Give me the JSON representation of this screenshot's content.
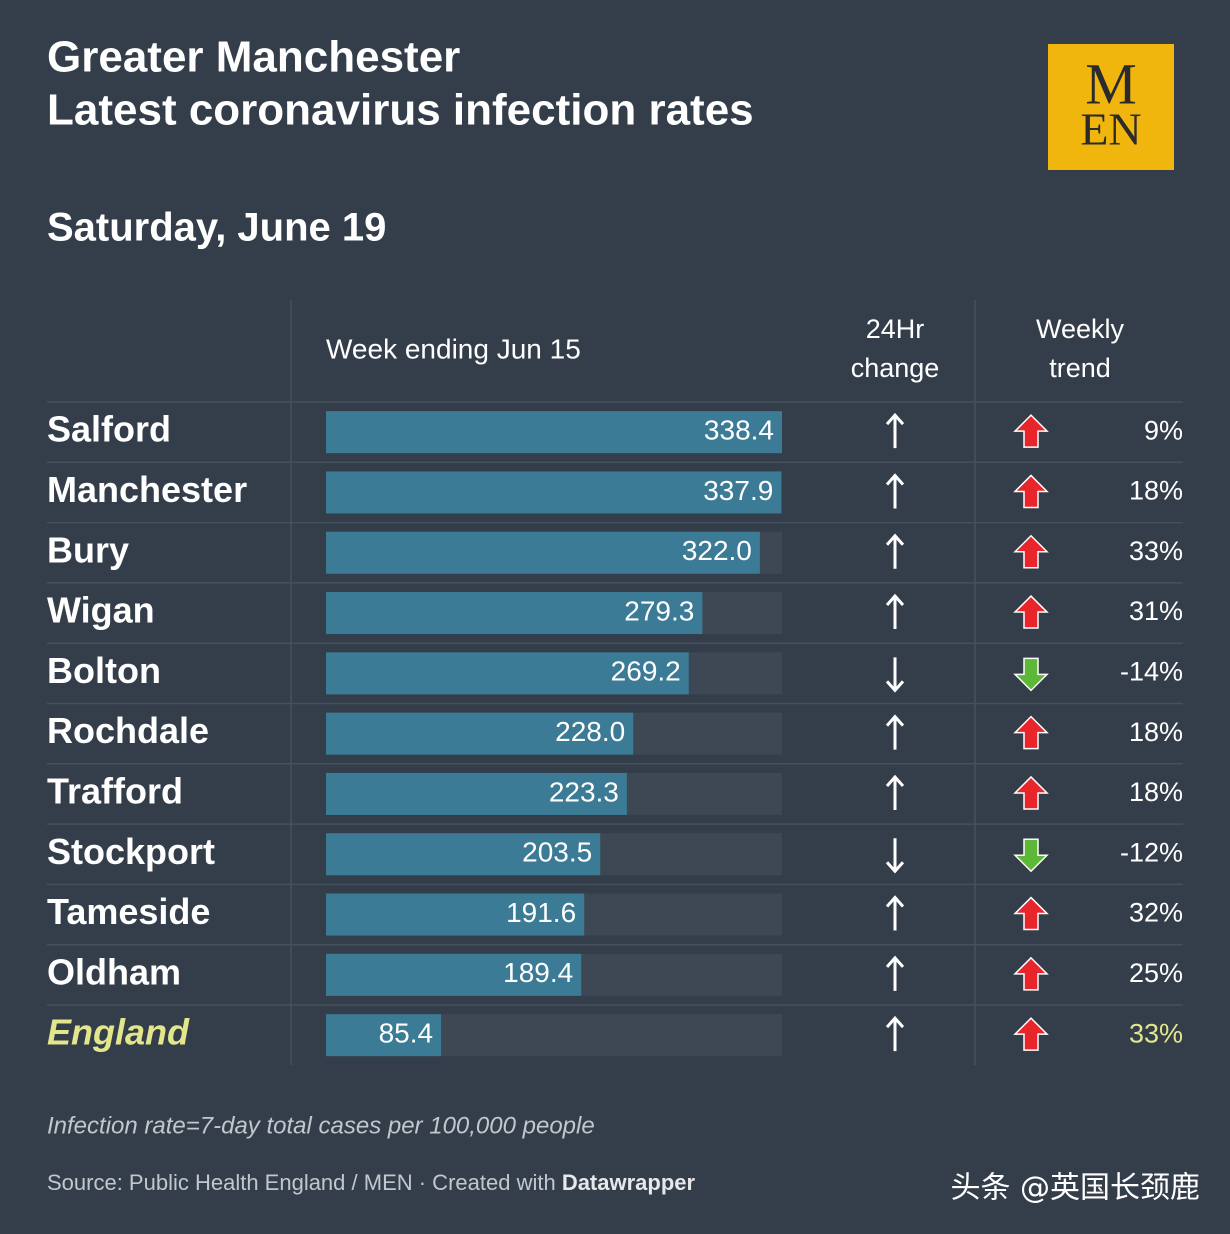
{
  "chart_data": {
    "type": "bar",
    "title": [
      "Greater Manchester",
      "Latest coronavirus infection rates"
    ],
    "subtitle": "Saturday, June 19",
    "logo": [
      "M",
      "EN"
    ],
    "column_headers": [
      "Week ending Jun 15",
      "24Hr change",
      "Weekly trend"
    ],
    "categories": [
      "Salford",
      "Manchester",
      "Bury",
      "Wigan",
      "Bolton",
      "Rochdale",
      "Trafford",
      "Stockport",
      "Tameside",
      "Oldham",
      "England"
    ],
    "values": [
      338.4,
      337.9,
      322.0,
      279.3,
      269.2,
      228.0,
      223.3,
      203.5,
      191.6,
      189.4,
      85.4
    ],
    "value_labels": [
      "338.4",
      "337.9",
      "322.0",
      "279.3",
      "269.2",
      "228.0",
      "223.3",
      "203.5",
      "191.6",
      "189.4",
      "85.4"
    ],
    "xlim": [
      0,
      338.4
    ],
    "color": "#3b7b95",
    "change_24hr": [
      "up",
      "up",
      "up",
      "up",
      "down",
      "up",
      "up",
      "down",
      "up",
      "up",
      "up"
    ],
    "weekly_trend": {
      "values": [
        9,
        18,
        33,
        31,
        -14,
        18,
        18,
        -12,
        32,
        25,
        33
      ],
      "value_labels": [
        "9%",
        "18%",
        "33%",
        "31%",
        "-14%",
        "18%",
        "18%",
        "-12%",
        "32%",
        "25%",
        "33%"
      ],
      "up_color": "#e8252b",
      "down_color": "#5cb836"
    },
    "highlight": "England",
    "highlight_color": "#e3e68b",
    "note": "Infection rate=7-day total cases per 100,000 people",
    "source": [
      "Source: Public Health England / MEN · Created with ",
      "Datawrapper"
    ],
    "watermark": "头条 @英国长颈鹿"
  }
}
